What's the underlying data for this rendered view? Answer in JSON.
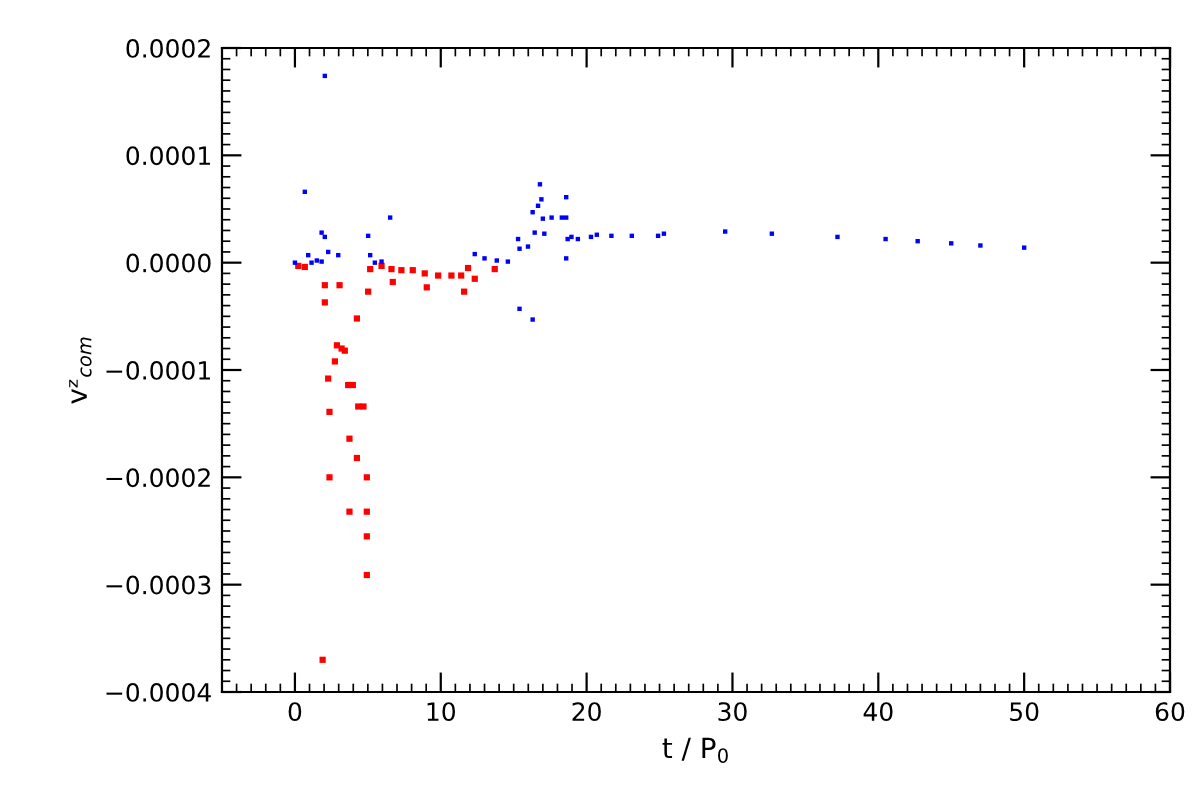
{
  "chart_data": {
    "type": "scatter",
    "xlabel": "t / P$_{0}$",
    "ylabel": "vᶻ$_{com}$",
    "xlim": [
      -5,
      60
    ],
    "xticks": [
      0,
      10,
      20,
      30,
      40,
      50,
      60
    ],
    "ylim": [
      -0.0004,
      0.0002
    ],
    "yticks": [
      {
        "value": -0.0004,
        "label": "−0.0004"
      },
      {
        "value": -0.0003,
        "label": "−0.0003"
      },
      {
        "value": -0.0002,
        "label": "−0.0002"
      },
      {
        "value": -0.0001,
        "label": "−0.0001"
      },
      {
        "value": 0,
        "label": "0.0000"
      },
      {
        "value": 0.0001,
        "label": "0.0001"
      },
      {
        "value": 0.0002,
        "label": "0.0002"
      }
    ],
    "grid": false,
    "marker": "square",
    "series": [
      {
        "color": "#ff0000",
        "x": [
          0.23,
          0.68,
          1.9,
          2.05,
          2.05,
          2.28,
          2.37,
          2.37,
          2.74,
          2.88,
          3.06,
          3.2,
          3.42,
          3.65,
          3.74,
          3.74,
          3.97,
          4.25,
          4.25,
          4.34,
          4.7,
          4.93,
          4.93,
          4.93,
          4.93,
          5.02,
          5.16,
          5.94,
          6.62,
          6.71,
          7.3,
          8.08,
          8.9,
          9.04,
          9.82,
          10.73,
          11.4,
          11.6,
          11.87,
          12.33,
          13.7
        ],
        "values": [
          -3e-06,
          -4e-06,
          -0.00037,
          -3.7e-05,
          -2.1e-05,
          -0.000108,
          -0.000139,
          -0.0002,
          -9.2e-05,
          -7.7e-05,
          -2.1e-05,
          -8e-05,
          -8.2e-05,
          -0.000114,
          -0.000164,
          -0.000232,
          -0.000114,
          -5.2e-05,
          -0.000182,
          -0.000134,
          -0.000134,
          -0.0002,
          -0.000232,
          -0.000255,
          -0.000291,
          -2.7e-05,
          -6e-06,
          -3e-06,
          -6e-06,
          -1.8e-05,
          -7e-06,
          -7e-06,
          -1e-05,
          -2.3e-05,
          -1.2e-05,
          -1.2e-05,
          -1.2e-05,
          -2.7e-05,
          -5e-06,
          -1.5e-05,
          -6e-06
        ]
      },
      {
        "color": "#0000ff",
        "x": [
          0.0,
          0.68,
          0.91,
          1.14,
          1.5,
          1.83,
          1.83,
          2.05,
          2.05,
          2.28,
          2.97,
          5.02,
          5.16,
          5.48,
          5.94,
          6.53,
          12.33,
          13.0,
          13.84,
          14.6,
          15.3,
          15.4,
          15.4,
          15.98,
          16.3,
          16.3,
          16.44,
          16.67,
          16.8,
          16.9,
          17.0,
          17.1,
          17.6,
          18.3,
          18.6,
          18.6,
          18.6,
          18.7,
          18.96,
          19.4,
          20.3,
          20.7,
          21.7,
          23.1,
          24.9,
          25.3,
          29.5,
          32.7,
          37.2,
          40.5,
          42.7,
          45.0,
          47.0,
          50.0
        ],
        "values": [
          0.0,
          6.6e-05,
          7e-06,
          0.0,
          2e-06,
          2.8e-05,
          1e-06,
          0.000174,
          2.4e-05,
          1e-05,
          7e-06,
          2.5e-05,
          7e-06,
          0.0,
          1e-06,
          4.2e-05,
          8e-06,
          4e-06,
          2e-06,
          1e-06,
          2.2e-05,
          1.3e-05,
          -4.3e-05,
          1.5e-05,
          4.7e-05,
          -5.3e-05,
          2.8e-05,
          5.3e-05,
          7.3e-05,
          5.9e-05,
          4.1e-05,
          2.7e-05,
          4.2e-05,
          4.2e-05,
          6.1e-05,
          4.2e-05,
          4e-06,
          2.2e-05,
          2.4e-05,
          2.2e-05,
          2.4e-05,
          2.6e-05,
          2.5e-05,
          2.5e-05,
          2.5e-05,
          2.7e-05,
          2.9e-05,
          2.7e-05,
          2.4e-05,
          2.2e-05,
          2e-05,
          1.8e-05,
          1.6e-05,
          1.4e-05
        ]
      }
    ]
  }
}
